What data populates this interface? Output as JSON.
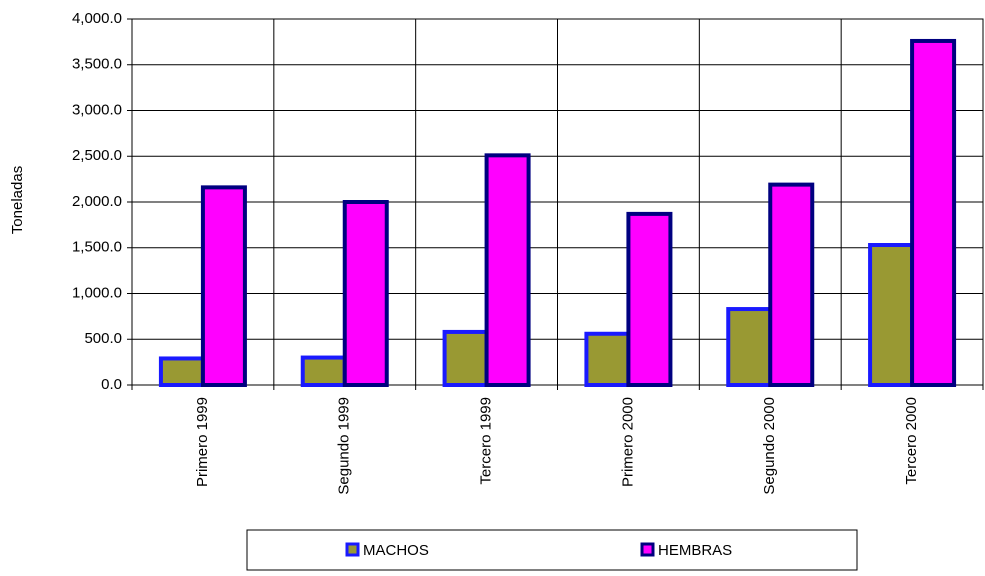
{
  "chart_data": {
    "type": "bar",
    "y_label": "Toneladas",
    "categories": [
      "Primero 1999",
      "Segundo 1999",
      "Tercero 1999",
      "Primero 2000",
      "Segundo 2000",
      "Tercero 2000"
    ],
    "series": [
      {
        "name": "MACHOS",
        "color": "#999933",
        "edgecolor": "#1a1aff",
        "values": [
          290,
          300,
          580,
          560,
          830,
          1530
        ]
      },
      {
        "name": "HEMBRAS",
        "color": "#ff00ff",
        "edgecolor": "#000080",
        "values": [
          2160,
          2000,
          2510,
          1870,
          2190,
          3760
        ]
      }
    ],
    "ylim": [
      0,
      4000
    ],
    "yticks": [
      {
        "value": 0,
        "label": "0.0"
      },
      {
        "value": 500,
        "label": "500.0"
      },
      {
        "value": 1000,
        "label": "1,000.0"
      },
      {
        "value": 1500,
        "label": "1,500.0"
      },
      {
        "value": 2000,
        "label": "2,000.0"
      },
      {
        "value": 2500,
        "label": "2,500.0"
      },
      {
        "value": 3000,
        "label": "3,000.0"
      },
      {
        "value": 3500,
        "label": "3,500.0"
      },
      {
        "value": 4000,
        "label": "4,000.0"
      }
    ],
    "grid": true,
    "legend": "bottom"
  }
}
